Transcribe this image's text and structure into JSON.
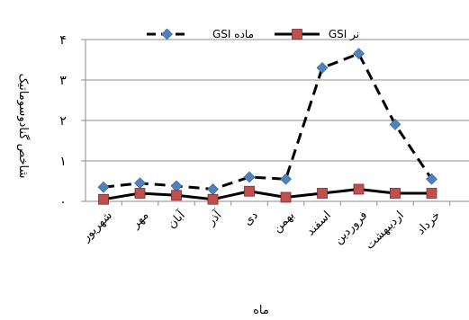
{
  "chart_data": {
    "type": "line",
    "categories": [
      "شهریور",
      "مهر",
      "آبان",
      "آذر",
      "دی",
      "بهمن",
      "اسفند",
      "فروردین",
      "اردیبهشت",
      "خرداد"
    ],
    "y_ticks": [
      "۰",
      "۱",
      "۲",
      "۳",
      "۴"
    ],
    "ylim": [
      0,
      4
    ],
    "xlabel": "ماه",
    "ylabel": "شاخص گنادوسوماتیک",
    "grid": "horizontal",
    "legend_position": "top",
    "series": [
      {
        "name": "GSI ماده",
        "values": [
          0.35,
          0.45,
          0.38,
          0.3,
          0.6,
          0.55,
          3.3,
          3.65,
          1.9,
          0.55
        ],
        "color": "#4f81bd",
        "marker": "diamond",
        "line_style": "dashed"
      },
      {
        "name": "GSI نر",
        "values": [
          0.05,
          0.2,
          0.15,
          0.05,
          0.25,
          0.1,
          0.2,
          0.3,
          0.2,
          0.2
        ],
        "color": "#c0504d",
        "marker": "square",
        "line_style": "solid"
      }
    ]
  }
}
